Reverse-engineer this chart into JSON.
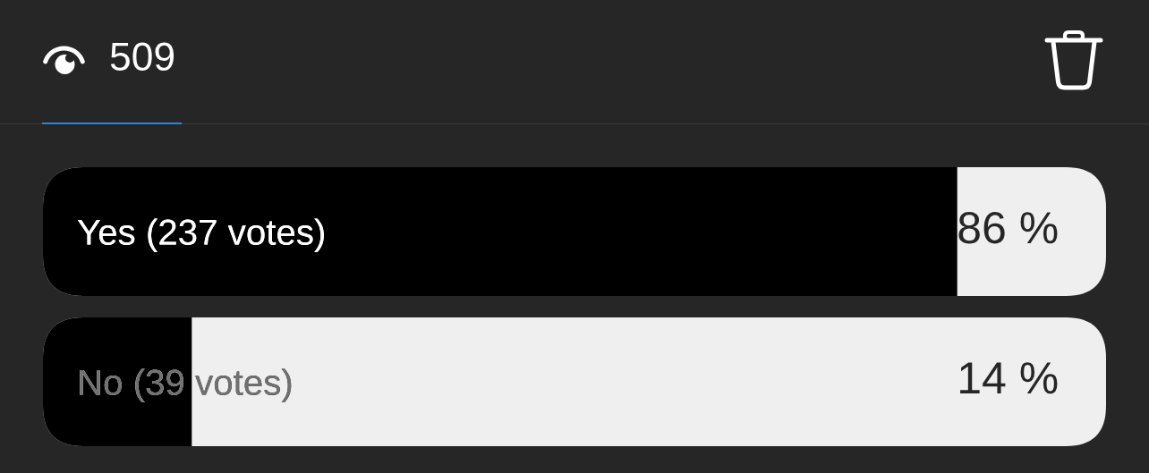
{
  "chart_data": {
    "type": "bar",
    "orientation": "horizontal",
    "categories": [
      "Yes (237 votes)",
      "No (39 votes)"
    ],
    "values": [
      86,
      14
    ],
    "color": "#000000",
    "value_labels": [
      "86 %",
      "14 %"
    ],
    "xlim": [
      0,
      100
    ],
    "tick_labels": "y",
    "annotations": [
      "509"
    ]
  }
}
